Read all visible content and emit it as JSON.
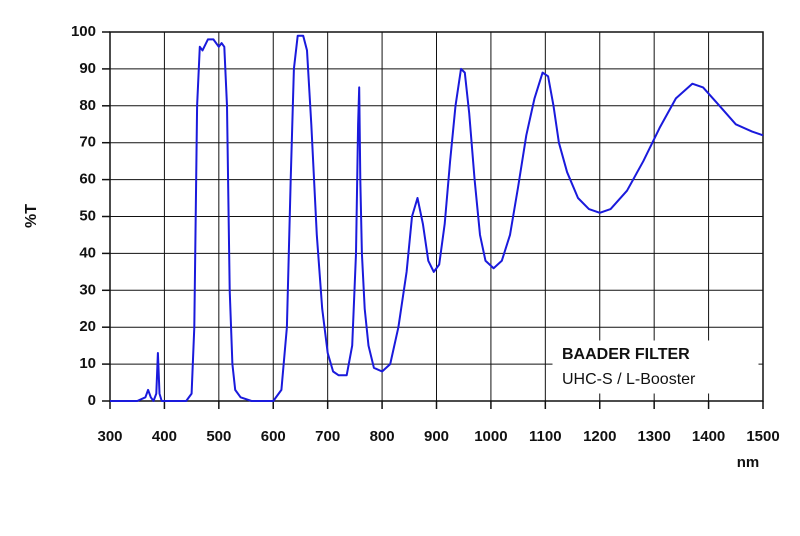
{
  "chart_data": {
    "type": "line",
    "ylabel": "%T",
    "xlabel": "nm",
    "annotations": [
      "BAADER FILTER",
      "UHC-S / L-Booster"
    ],
    "xlim": [
      300,
      1500
    ],
    "ylim": [
      0,
      100
    ],
    "xticks": [
      300,
      400,
      500,
      600,
      700,
      800,
      900,
      1000,
      1100,
      1200,
      1300,
      1400,
      1500
    ],
    "yticks": [
      0,
      10,
      20,
      30,
      40,
      50,
      60,
      70,
      80,
      90,
      100
    ],
    "grid": true,
    "series": [
      {
        "color": "#1a1adc",
        "x": [
          300,
          350,
          365,
          370,
          375,
          380,
          385,
          388,
          391,
          395,
          420,
          440,
          450,
          455,
          460,
          465,
          470,
          480,
          490,
          500,
          505,
          510,
          515,
          520,
          525,
          530,
          540,
          560,
          600,
          615,
          625,
          632,
          638,
          645,
          655,
          662,
          670,
          680,
          690,
          700,
          710,
          720,
          735,
          745,
          752,
          756,
          758,
          760,
          763,
          768,
          775,
          785,
          800,
          815,
          830,
          845,
          855,
          865,
          875,
          885,
          895,
          905,
          915,
          925,
          935,
          945,
          952,
          960,
          970,
          980,
          990,
          1005,
          1020,
          1035,
          1050,
          1065,
          1080,
          1095,
          1105,
          1115,
          1125,
          1140,
          1160,
          1180,
          1200,
          1220,
          1250,
          1280,
          1310,
          1340,
          1370,
          1390,
          1420,
          1450,
          1480,
          1500
        ],
        "values": [
          0,
          0,
          1,
          3,
          1,
          0,
          2,
          13,
          2,
          0,
          0,
          0,
          2,
          20,
          80,
          96,
          95,
          98,
          98,
          96,
          97,
          96,
          80,
          30,
          10,
          3,
          1,
          0,
          0,
          3,
          20,
          60,
          90,
          99,
          99,
          95,
          75,
          45,
          25,
          13,
          8,
          7,
          7,
          15,
          40,
          75,
          85,
          60,
          40,
          25,
          15,
          9,
          8,
          10,
          20,
          35,
          50,
          55,
          48,
          38,
          35,
          37,
          48,
          65,
          80,
          90,
          89,
          78,
          60,
          45,
          38,
          36,
          38,
          45,
          58,
          72,
          82,
          89,
          88,
          80,
          70,
          62,
          55,
          52,
          51,
          52,
          57,
          65,
          74,
          82,
          86,
          85,
          80,
          75,
          73,
          72
        ]
      }
    ]
  }
}
